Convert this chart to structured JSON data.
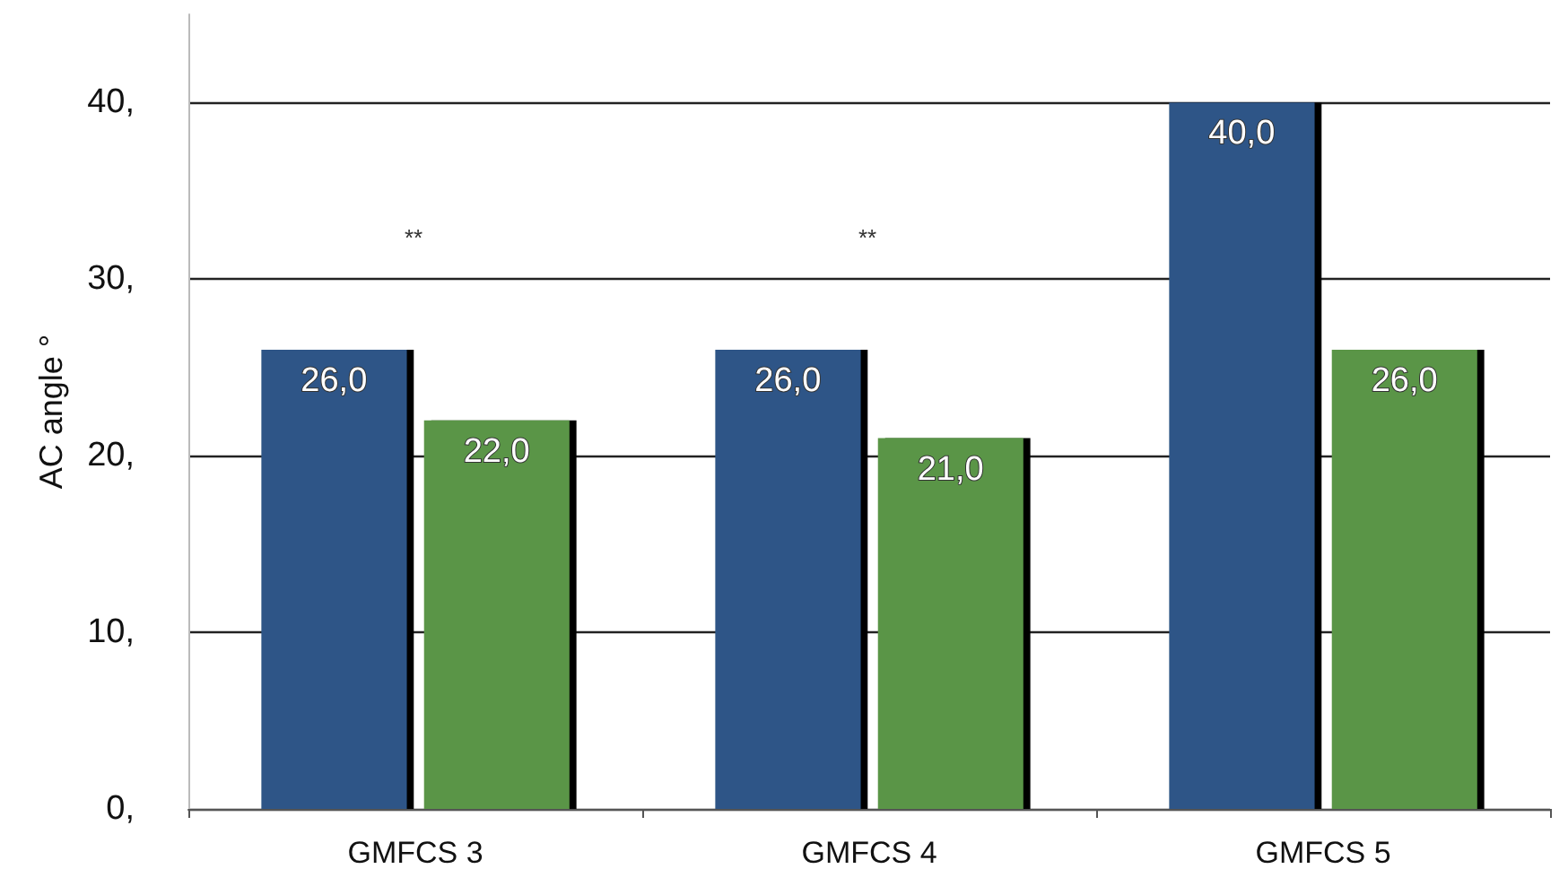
{
  "chart_data": {
    "type": "bar",
    "ylabel": "AC angle °",
    "categories": [
      "GMFCS 3",
      "GMFCS 4",
      "GMFCS 5"
    ],
    "series": [
      {
        "color": "#2e5587",
        "values": [
          26,
          26,
          40
        ],
        "value_labels": [
          "26,0",
          "26,0",
          "40,0"
        ]
      },
      {
        "color": "#5a9547",
        "values": [
          22,
          21,
          26
        ],
        "value_labels": [
          "22,0",
          "21,0",
          "26,0"
        ]
      }
    ],
    "ylim": [
      0,
      45
    ],
    "yticks": [
      {
        "value": 0,
        "label": "0,"
      },
      {
        "value": 10,
        "label": "10,"
      },
      {
        "value": 20,
        "label": "20,"
      },
      {
        "value": 30,
        "label": "30,"
      },
      {
        "value": 40,
        "label": "40,"
      }
    ],
    "annotations": [
      "**",
      "**"
    ],
    "grid": "y"
  }
}
